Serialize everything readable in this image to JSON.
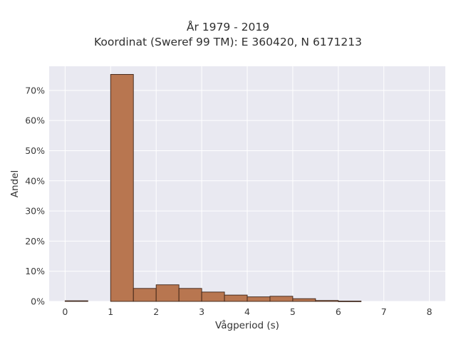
{
  "chart_data": {
    "type": "bar",
    "title": "År 1979 - 2019",
    "subtitle": "Koordinat (Sweref 99 TM): E 360420, N 6171213",
    "xlabel": "Vågperiod (s)",
    "ylabel": "Andel",
    "xlim": [
      -0.35,
      8.35
    ],
    "ylim": [
      0,
      78
    ],
    "xticks": [
      0,
      1,
      2,
      3,
      4,
      5,
      6,
      7,
      8
    ],
    "yticks": [
      0,
      10,
      20,
      30,
      40,
      50,
      60,
      70
    ],
    "ytick_labels": [
      "0%",
      "10%",
      "20%",
      "30%",
      "40%",
      "50%",
      "60%",
      "70%"
    ],
    "bin_width": 0.5,
    "bins": [
      {
        "x0": 0.0,
        "x1": 0.5,
        "value": 0.2
      },
      {
        "x0": 0.5,
        "x1": 1.0,
        "value": 0.0
      },
      {
        "x0": 1.0,
        "x1": 1.5,
        "value": 75.3
      },
      {
        "x0": 1.5,
        "x1": 2.0,
        "value": 4.3
      },
      {
        "x0": 2.0,
        "x1": 2.5,
        "value": 5.5
      },
      {
        "x0": 2.5,
        "x1": 3.0,
        "value": 4.3
      },
      {
        "x0": 3.0,
        "x1": 3.5,
        "value": 3.1
      },
      {
        "x0": 3.5,
        "x1": 4.0,
        "value": 2.1
      },
      {
        "x0": 4.0,
        "x1": 4.5,
        "value": 1.5
      },
      {
        "x0": 4.5,
        "x1": 5.0,
        "value": 1.7
      },
      {
        "x0": 5.0,
        "x1": 5.5,
        "value": 0.9
      },
      {
        "x0": 5.5,
        "x1": 6.0,
        "value": 0.3
      },
      {
        "x0": 6.0,
        "x1": 6.5,
        "value": 0.1
      }
    ],
    "bar_color": "#b87650",
    "bar_edge_color": "#3b2216",
    "plot_background": "#e9e9f1",
    "grid": true,
    "grid_color": "#ffffff"
  }
}
